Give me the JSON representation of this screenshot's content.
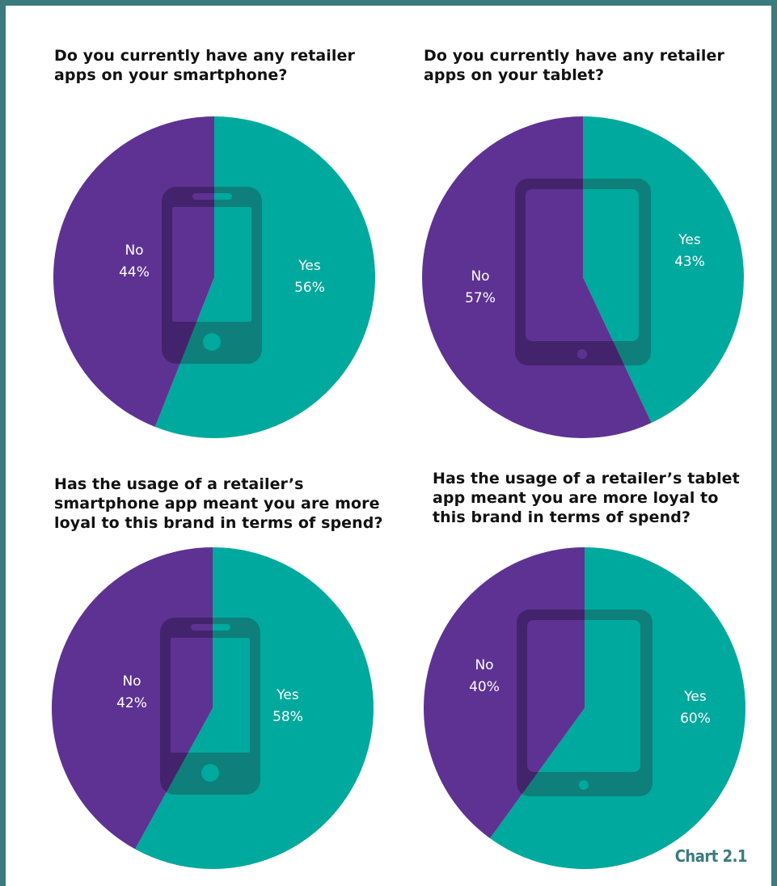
{
  "colors": {
    "yes": "#00a99d",
    "no": "#5e3292",
    "device_on_yes": "#0e7f7a",
    "device_on_no": "#43246c",
    "frame": "#3b7b7e"
  },
  "chart_tag": "Chart 2.1",
  "chart_data": [
    {
      "type": "pie",
      "title_lines": [
        "Do you currently have any retailer",
        "apps on your smartphone?"
      ],
      "icon": "smartphone-icon",
      "slices": [
        {
          "name": "Yes",
          "value": 56,
          "label": "56%"
        },
        {
          "name": "No",
          "value": 44,
          "label": "44%"
        }
      ]
    },
    {
      "type": "pie",
      "title_lines": [
        "Do you currently have any retailer",
        "apps on your tablet?"
      ],
      "icon": "tablet-icon",
      "slices": [
        {
          "name": "Yes",
          "value": 43,
          "label": "43%"
        },
        {
          "name": "No",
          "value": 57,
          "label": "57%"
        }
      ]
    },
    {
      "type": "pie",
      "title_lines": [
        "Has the usage of a retailer’s",
        "smartphone app meant you are more",
        "loyal to this brand in terms of spend?"
      ],
      "icon": "smartphone-icon",
      "slices": [
        {
          "name": "Yes",
          "value": 58,
          "label": "58%"
        },
        {
          "name": "No",
          "value": 42,
          "label": "42%"
        }
      ]
    },
    {
      "type": "pie",
      "title_lines": [
        "Has the usage of a retailer’s tablet",
        "app meant you are more loyal to",
        "this brand in terms of spend?"
      ],
      "icon": "tablet-icon",
      "slices": [
        {
          "name": "Yes",
          "value": 60,
          "label": "60%"
        },
        {
          "name": "No",
          "value": 40,
          "label": "40%"
        }
      ]
    }
  ]
}
